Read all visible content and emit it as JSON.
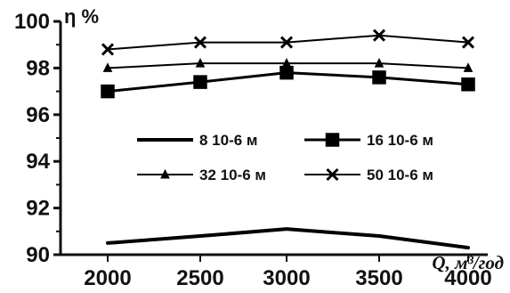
{
  "chart_data": {
    "type": "line",
    "x": [
      2000,
      2500,
      3000,
      3500,
      4000
    ],
    "xlabel": "Q, м³/год",
    "ylabel": "η %",
    "ylim": [
      90,
      100
    ],
    "xlim": [
      2000,
      4000
    ],
    "y_ticks": [
      "90",
      "92",
      "94",
      "96",
      "98",
      "100"
    ],
    "x_ticks": [
      "2000",
      "2500",
      "3000",
      "3500",
      "4000"
    ],
    "grid": false,
    "legend_position": "center",
    "series": [
      {
        "name": "8 10-6 м",
        "values": [
          90.5,
          90.8,
          91.1,
          90.8,
          90.3
        ],
        "marker": "none",
        "color": "#000000"
      },
      {
        "name": "16 10-6 м",
        "values": [
          97.0,
          97.4,
          97.8,
          97.6,
          97.3
        ],
        "marker": "square",
        "color": "#000000"
      },
      {
        "name": "32 10-6 м",
        "values": [
          98.0,
          98.2,
          98.2,
          98.2,
          98.0
        ],
        "marker": "triangle",
        "color": "#000000"
      },
      {
        "name": "50 10-6 м",
        "values": [
          98.8,
          99.1,
          99.1,
          99.4,
          99.1
        ],
        "marker": "x",
        "color": "#000000"
      }
    ]
  }
}
